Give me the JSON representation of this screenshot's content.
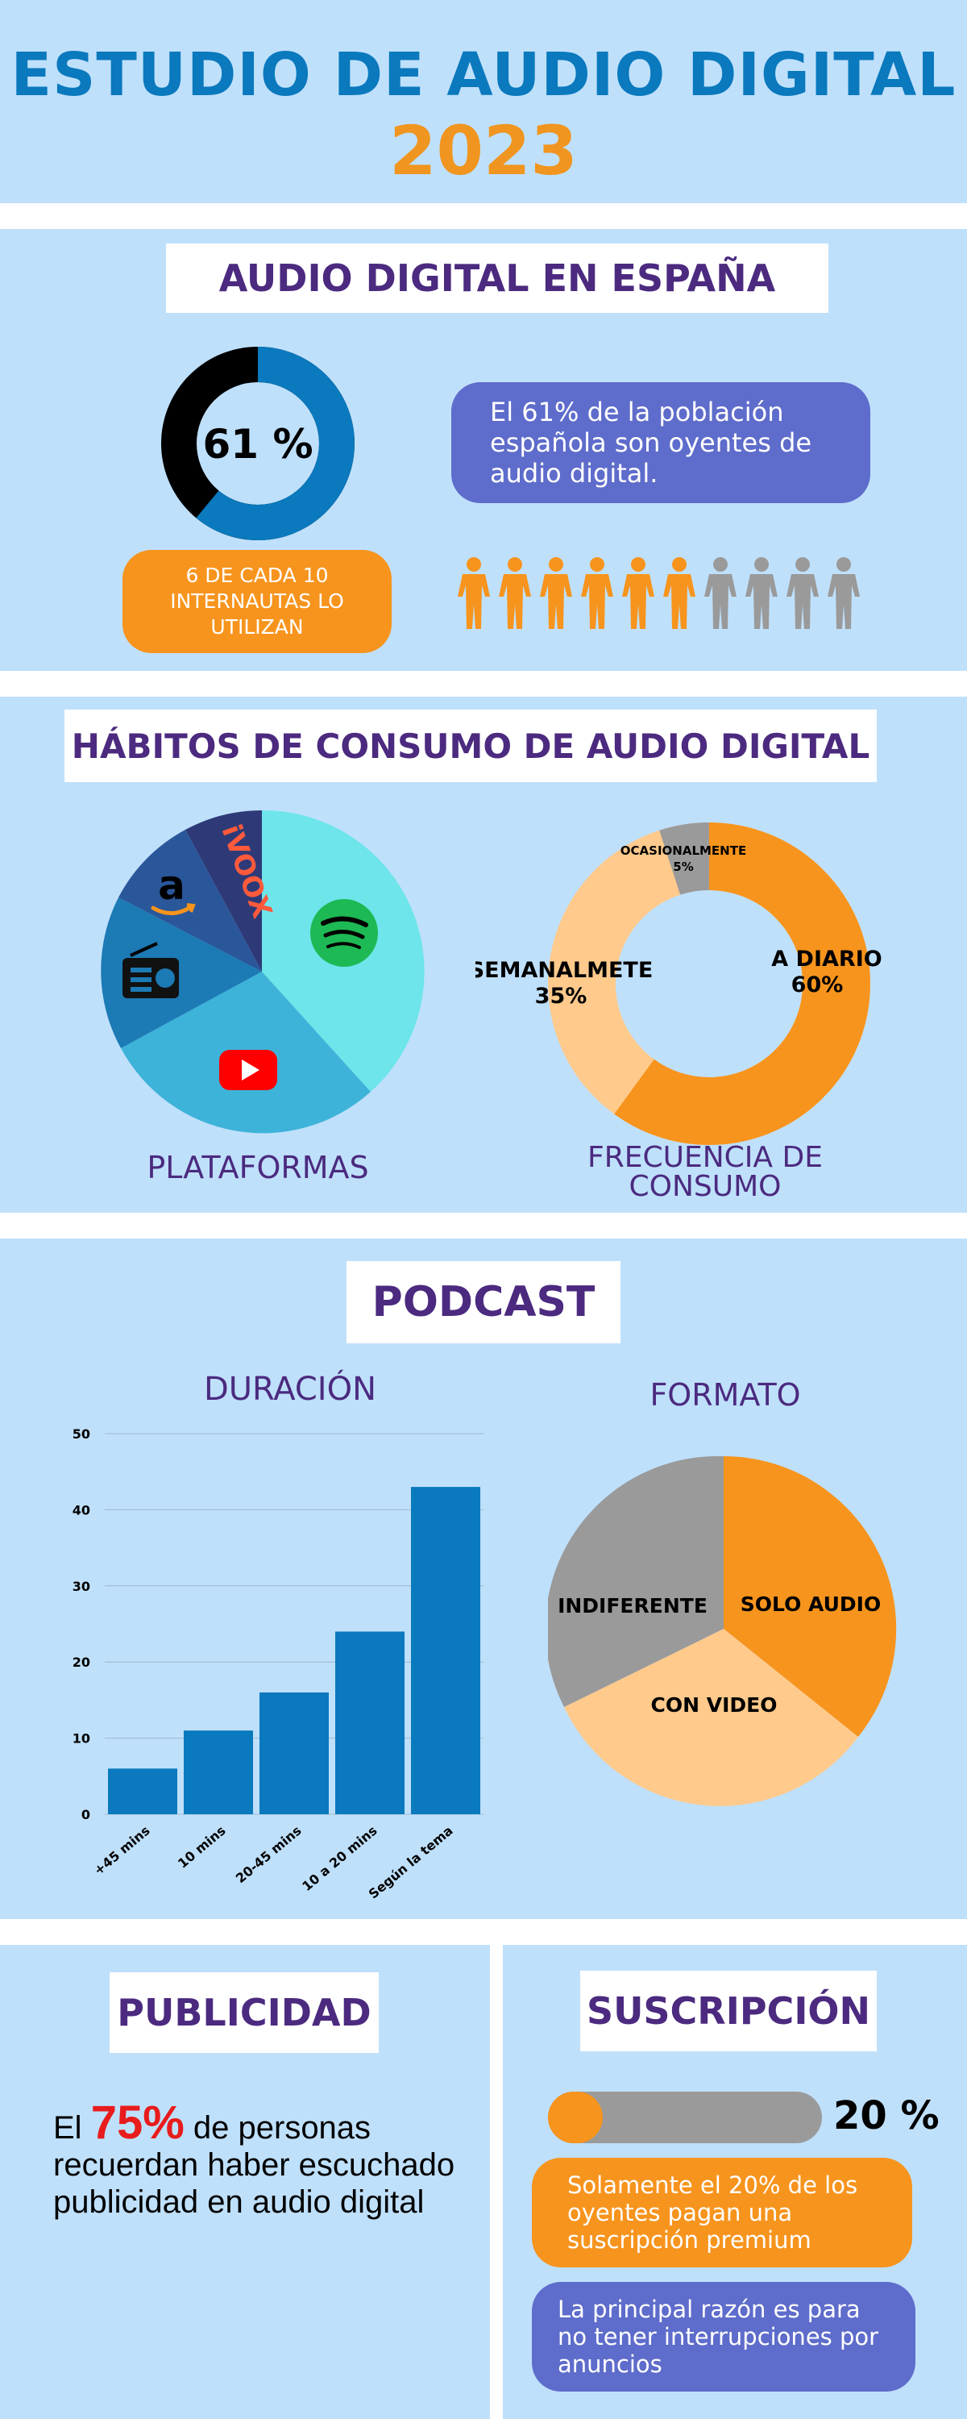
{
  "header": {
    "title": "ESTUDIO DE AUDIO DIGITAL",
    "year": "2023"
  },
  "section1": {
    "heading": "AUDIO DIGITAL EN ESPAÑA",
    "donut_label": "61 %",
    "donut_value": 0.61,
    "badge": "6 DE CADA 10 INTERNAUTAS LO UTILIZAN",
    "statement": "El 61% de la población española son oyentes de audio digital.",
    "people_total": 10,
    "people_highlighted": 6
  },
  "section2": {
    "heading": "HÁBITOS DE CONSUMO DE AUDIO DIGITAL",
    "platforms_caption": "PLATAFORMAS",
    "platform_icons": [
      "spotify-icon",
      "youtube-icon",
      "radio-icon",
      "amazon-icon",
      "ivoox-icon"
    ],
    "ivoox_text": "iVOOX",
    "frequency_caption": "FRECUENCIA DE CONSUMO",
    "frequency": [
      {
        "label": "A DIARIO",
        "value": "60%"
      },
      {
        "label": "SEMANALMETE",
        "value": "35%"
      },
      {
        "label": "OCASIONALMENTE",
        "value": "5%"
      }
    ]
  },
  "section3": {
    "heading": "PODCAST",
    "duration_caption": "DURACIÓN",
    "format_caption": "FORMATO",
    "format_labels": [
      "SOLO AUDIO",
      "CON VIDEO",
      "INDIFERENTE"
    ]
  },
  "chart_data": [
    {
      "type": "bar",
      "title": "DURACIÓN",
      "categories": [
        "+45 mins",
        "10 mins",
        "20-45 mins",
        "10 a 20 mins",
        "Según la tema"
      ],
      "values": [
        6,
        11,
        16,
        24,
        43
      ],
      "yticks": [
        "0",
        "10",
        "20",
        "30",
        "40",
        "50"
      ],
      "ylim": [
        0,
        50
      ],
      "grid": true
    },
    {
      "type": "pie",
      "title": "FORMATO",
      "labels": [
        "SOLO AUDIO",
        "CON VIDEO",
        "INDIFERENTE"
      ],
      "values": [
        38,
        30,
        32
      ]
    }
  ],
  "section4": {
    "ads_heading": "PUBLICIDAD",
    "ads_pre": "El ",
    "ads_pct": "75%",
    "ads_post": " de personas recuerdan haber escuchado publicidad en audio digital",
    "sub_heading": "SUSCRIPCIÓN",
    "sub_pct_label": "20 %",
    "sub_pct_value": 0.2,
    "sub_pill1": "Solamente el 20% de los oyentes pagan una suscripción premium",
    "sub_pill2": "La principal razón es para no tener interrupciones por anuncios"
  },
  "colors": {
    "band": "#bfe0fb",
    "blue": "#0a79bd",
    "orange": "#f7941d",
    "light_orange": "#ffca8c",
    "gray": "#9a9a9a",
    "purple_pill": "#5e6ccb",
    "heading_purple": "#4b2a7f"
  }
}
